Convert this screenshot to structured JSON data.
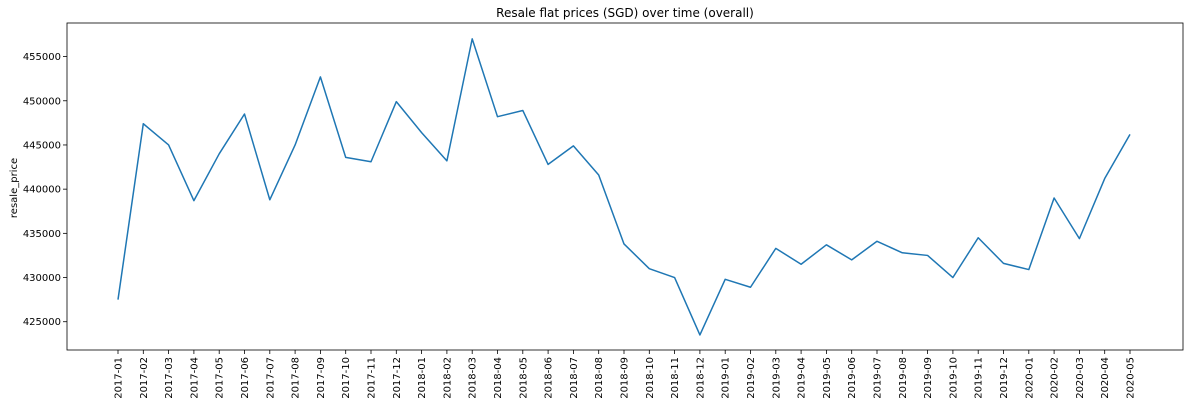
{
  "chart_data": {
    "type": "line",
    "title": "Resale flat prices (SGD) over time (overall)",
    "xlabel": "",
    "ylabel": "resale_price",
    "ylim": [
      421800,
      458800
    ],
    "yticks": [
      425000,
      430000,
      435000,
      440000,
      445000,
      450000,
      455000
    ],
    "yticklabels": [
      "425000",
      "430000",
      "435000",
      "440000",
      "445000",
      "450000",
      "455000"
    ],
    "grid": false,
    "categories": [
      "2017-01",
      "2017-02",
      "2017-03",
      "2017-04",
      "2017-05",
      "2017-06",
      "2017-07",
      "2017-08",
      "2017-09",
      "2017-10",
      "2017-11",
      "2017-12",
      "2018-01",
      "2018-02",
      "2018-03",
      "2018-04",
      "2018-05",
      "2018-06",
      "2018-07",
      "2018-08",
      "2018-09",
      "2018-10",
      "2018-11",
      "2018-12",
      "2019-01",
      "2019-02",
      "2019-03",
      "2019-04",
      "2019-05",
      "2019-06",
      "2019-07",
      "2019-08",
      "2019-09",
      "2019-10",
      "2019-11",
      "2019-12",
      "2020-01",
      "2020-02",
      "2020-03",
      "2020-04",
      "2020-05"
    ],
    "series": [
      {
        "color": "#1f77b4",
        "values": [
          427500,
          447400,
          445000,
          438700,
          444000,
          448500,
          438800,
          445000,
          452700,
          443600,
          443100,
          449900,
          446400,
          443200,
          457000,
          448200,
          448900,
          442800,
          444900,
          441600,
          433800,
          431000,
          430000,
          423500,
          429800,
          428900,
          433300,
          431500,
          433700,
          432000,
          434100,
          432800,
          432500,
          430000,
          434500,
          431600,
          430900,
          439000,
          434400,
          441200,
          446200
        ]
      }
    ]
  }
}
